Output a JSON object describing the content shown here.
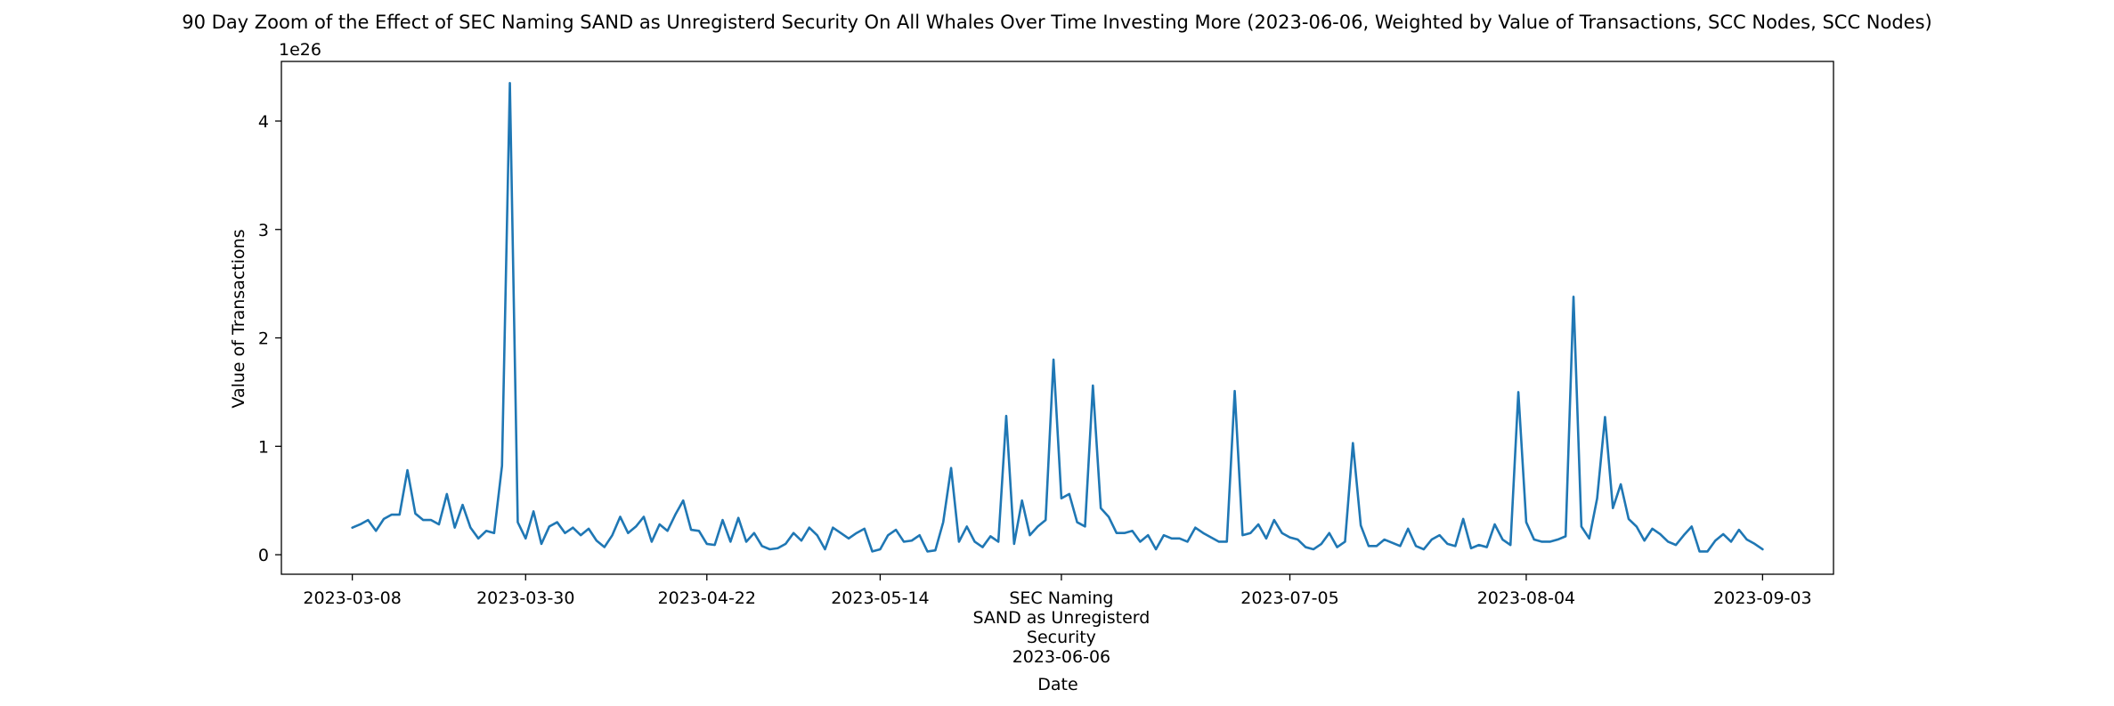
{
  "chart_data": {
    "type": "line",
    "title": "90 Day Zoom of the Effect of SEC Naming SAND as Unregisterd Security On All Whales Over Time Investing More (2023-06-06, Weighted by Value of Transactions, SCC Nodes, SCC Nodes)",
    "xlabel": "Date",
    "ylabel": "Value of Transactions",
    "y_offset_label": "1e26",
    "y_scale": 1e+26,
    "x_range": [
      "2023-02-27",
      "2023-09-12"
    ],
    "ylim": [
      -0.18,
      4.55
    ],
    "y_ticks": [
      0,
      1,
      2,
      3,
      4
    ],
    "y_tick_labels": [
      "0",
      "1",
      "2",
      "3",
      "4"
    ],
    "x_ticks": [
      {
        "date": "2023-03-08",
        "lines": [
          "2023-03-08"
        ]
      },
      {
        "date": "2023-03-30",
        "lines": [
          "2023-03-30"
        ]
      },
      {
        "date": "2023-04-22",
        "lines": [
          "2023-04-22"
        ]
      },
      {
        "date": "2023-05-14",
        "lines": [
          "2023-05-14"
        ]
      },
      {
        "date": "2023-06-06",
        "lines": [
          "SEC Naming",
          "SAND as Unregisterd",
          "Security",
          "2023-06-06"
        ]
      },
      {
        "date": "2023-07-05",
        "lines": [
          "2023-07-05"
        ]
      },
      {
        "date": "2023-08-04",
        "lines": [
          "2023-08-04"
        ]
      },
      {
        "date": "2023-09-03",
        "lines": [
          "2023-09-03"
        ]
      }
    ],
    "grid": false,
    "series": [
      {
        "color": "#1f77b4",
        "x_start": "2023-03-08",
        "x_end": "2023-09-03",
        "values": [
          0.25,
          0.28,
          0.32,
          0.22,
          0.33,
          0.37,
          0.37,
          0.78,
          0.38,
          0.32,
          0.32,
          0.28,
          0.56,
          0.25,
          0.46,
          0.25,
          0.15,
          0.22,
          0.2,
          0.82,
          4.35,
          0.3,
          0.15,
          0.4,
          0.1,
          0.26,
          0.3,
          0.2,
          0.25,
          0.18,
          0.24,
          0.13,
          0.07,
          0.18,
          0.35,
          0.2,
          0.26,
          0.35,
          0.12,
          0.28,
          0.22,
          0.37,
          0.5,
          0.23,
          0.22,
          0.1,
          0.09,
          0.32,
          0.12,
          0.34,
          0.12,
          0.2,
          0.08,
          0.05,
          0.06,
          0.1,
          0.2,
          0.13,
          0.25,
          0.18,
          0.05,
          0.25,
          0.2,
          0.15,
          0.2,
          0.24,
          0.03,
          0.05,
          0.18,
          0.23,
          0.12,
          0.13,
          0.18,
          0.03,
          0.04,
          0.3,
          0.8,
          0.12,
          0.26,
          0.12,
          0.07,
          0.17,
          0.12,
          1.28,
          0.1,
          0.5,
          0.18,
          0.26,
          0.32,
          1.8,
          0.52,
          0.56,
          0.3,
          0.26,
          1.56,
          0.43,
          0.35,
          0.2,
          0.2,
          0.22,
          0.12,
          0.18,
          0.05,
          0.18,
          0.15,
          0.15,
          0.12,
          0.25,
          0.2,
          0.16,
          0.12,
          0.12,
          1.51,
          0.18,
          0.2,
          0.28,
          0.15,
          0.32,
          0.2,
          0.16,
          0.14,
          0.07,
          0.05,
          0.1,
          0.2,
          0.07,
          0.12,
          1.03,
          0.27,
          0.08,
          0.08,
          0.14,
          0.11,
          0.08,
          0.24,
          0.08,
          0.05,
          0.14,
          0.18,
          0.1,
          0.08,
          0.33,
          0.06,
          0.09,
          0.07,
          0.28,
          0.14,
          0.09,
          1.5,
          0.3,
          0.14,
          0.12,
          0.12,
          0.14,
          0.17,
          2.38,
          0.26,
          0.15,
          0.52,
          1.27,
          0.43,
          0.65,
          0.33,
          0.26,
          0.13,
          0.24,
          0.19,
          0.12,
          0.09,
          0.18,
          0.26,
          0.03,
          0.03,
          0.13,
          0.19,
          0.12,
          0.23,
          0.14,
          0.1,
          0.05
        ]
      }
    ]
  }
}
